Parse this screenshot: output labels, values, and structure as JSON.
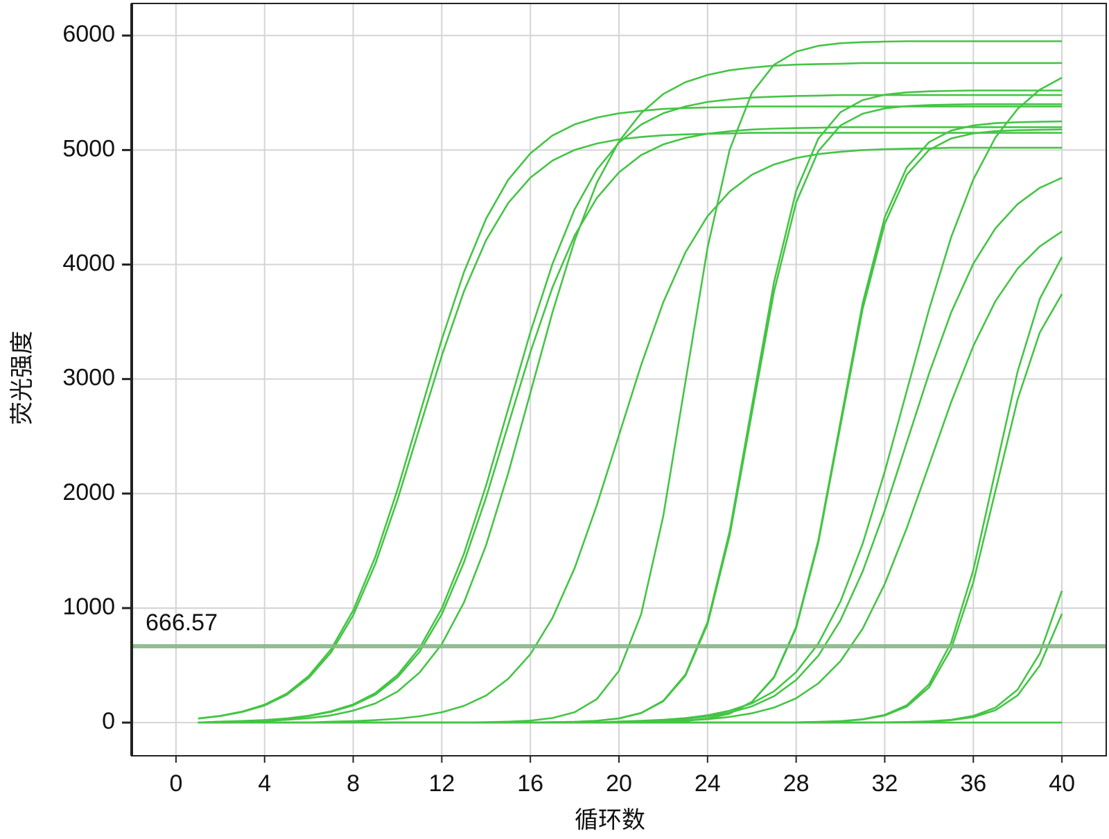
{
  "chart_data": {
    "type": "line",
    "x_label": "循环数",
    "y_label": "荧光强度",
    "xlim": [
      -2,
      42
    ],
    "ylim": [
      -290,
      6280
    ],
    "xticks": [
      0,
      4,
      8,
      12,
      16,
      20,
      24,
      28,
      32,
      36,
      40
    ],
    "yticks": [
      0,
      1000,
      2000,
      3000,
      4000,
      5000,
      6000
    ],
    "grid": true,
    "threshold": 666.57,
    "threshold_color": "#86b886",
    "x": [
      1,
      2,
      3,
      4,
      5,
      6,
      7,
      8,
      9,
      10,
      11,
      12,
      13,
      14,
      15,
      16,
      17,
      18,
      19,
      20,
      21,
      22,
      23,
      24,
      25,
      26,
      27,
      28,
      29,
      30,
      31,
      32,
      33,
      34,
      35,
      36,
      37,
      38,
      39,
      40
    ],
    "series": [
      {
        "color": "#45c445",
        "values": [
          36,
          59,
          97,
          156,
          253,
          409,
          640,
          979,
          1447,
          2034,
          2690,
          3346,
          3933,
          4401,
          4740,
          4971,
          5127,
          5224,
          5283,
          5321,
          5342,
          5359,
          5367,
          5372,
          5375,
          5380,
          5380,
          5380,
          5380,
          5380,
          5380,
          5380,
          5380,
          5380,
          5380,
          5380,
          5380,
          5380,
          5380,
          5380
        ]
      },
      {
        "color": "#45c445",
        "values": [
          35,
          57,
          93,
          149,
          242,
          391,
          613,
          937,
          1385,
          1947,
          2575,
          3203,
          3765,
          4213,
          4537,
          4759,
          4908,
          5001,
          5057,
          5093,
          5114,
          5129,
          5137,
          5142,
          5145,
          5150,
          5150,
          5150,
          5150,
          5150,
          5150,
          5150,
          5150,
          5150,
          5150,
          5150,
          5150,
          5150,
          5150,
          5150
        ]
      },
      {
        "color": "#45c445",
        "values": [
          0,
          8,
          14,
          22,
          37,
          60,
          99,
          159,
          258,
          416,
          652,
          997,
          1474,
          2071,
          2740,
          3409,
          4006,
          4483,
          4828,
          5064,
          5222,
          5321,
          5381,
          5420,
          5442,
          5458,
          5466,
          5472,
          5475,
          5480,
          5480,
          5480,
          5480,
          5480,
          5480,
          5480,
          5480,
          5480,
          5480,
          5480
        ]
      },
      {
        "color": "#45c445",
        "values": [
          0,
          8,
          13,
          21,
          35,
          57,
          94,
          151,
          244,
          395,
          619,
          946,
          1399,
          1966,
          2600,
          3234,
          3801,
          4254,
          4581,
          4805,
          4956,
          5049,
          5106,
          5143,
          5164,
          5179,
          5187,
          5192,
          5195,
          5200,
          5200,
          5200,
          5200,
          5200,
          5200,
          5200,
          5200,
          5200,
          5200,
          5200
        ]
      },
      {
        "color": "#45c445",
        "values": [
          0,
          0,
          9,
          14,
          24,
          39,
          63,
          104,
          167,
          271,
          438,
          685,
          1048,
          1549,
          2177,
          2880,
          3583,
          4211,
          4712,
          5075,
          5322,
          5489,
          5593,
          5656,
          5697,
          5720,
          5737,
          5746,
          5751,
          5754,
          5760,
          5760,
          5760,
          5760,
          5760,
          5760,
          5760,
          5760,
          5760,
          5760
        ]
      },
      {
        "color": "#45c445",
        "values": [
          0,
          0,
          0,
          0,
          0,
          0,
          8,
          13,
          21,
          34,
          55,
          90,
          146,
          236,
          382,
          597,
          914,
          1350,
          1898,
          2510,
          3122,
          3670,
          4106,
          4423,
          4638,
          4784,
          4874,
          4930,
          4965,
          4985,
          5000,
          5007,
          5012,
          5015,
          5020,
          5020,
          5020,
          5020,
          5020,
          5020
        ]
      },
      {
        "color": "#45c445",
        "values": [
          0,
          0,
          0,
          0,
          0,
          0,
          0,
          0,
          0,
          0,
          0,
          0,
          1,
          3,
          8,
          17,
          40,
          91,
          205,
          452,
          946,
          1803,
          2975,
          4147,
          5004,
          5498,
          5745,
          5859,
          5910,
          5933,
          5942,
          5947,
          5950,
          5950,
          5950,
          5950,
          5950,
          5950,
          5950,
          5950
        ]
      },
      {
        "color": "#45c445",
        "values": [
          0,
          0,
          0,
          0,
          0,
          0,
          0,
          0,
          0,
          0,
          0,
          0,
          0,
          0,
          0,
          1,
          3,
          7,
          16,
          36,
          83,
          186,
          410,
          859,
          1636,
          2700,
          3764,
          4541,
          4990,
          5214,
          5317,
          5364,
          5384,
          5393,
          5397,
          5400,
          5400,
          5400,
          5400,
          5400
        ]
      },
      {
        "color": "#45c445",
        "values": [
          0,
          0,
          0,
          0,
          0,
          0,
          0,
          0,
          0,
          0,
          0,
          0,
          0,
          0,
          0,
          1,
          3,
          7,
          16,
          37,
          84,
          190,
          419,
          878,
          1673,
          2760,
          3847,
          4642,
          5100,
          5330,
          5436,
          5483,
          5504,
          5513,
          5517,
          5520,
          5520,
          5520,
          5520,
          5520
        ]
      },
      {
        "color": "#45c445",
        "values": [
          0,
          0,
          0,
          0,
          0,
          0,
          0,
          0,
          0,
          0,
          0,
          0,
          0,
          0,
          0,
          0,
          0,
          0,
          0,
          1,
          3,
          7,
          15,
          35,
          80,
          181,
          398,
          835,
          1591,
          2625,
          3659,
          4415,
          4851,
          5069,
          5170,
          5215,
          5235,
          5243,
          5247,
          5250
        ]
      },
      {
        "color": "#45c445",
        "values": [
          0,
          0,
          0,
          0,
          0,
          0,
          0,
          0,
          0,
          0,
          0,
          0,
          0,
          0,
          0,
          0,
          0,
          0,
          0,
          1,
          3,
          7,
          15,
          35,
          79,
          179,
          393,
          824,
          1570,
          2590,
          3610,
          4356,
          4786,
          5001,
          5101,
          5145,
          5165,
          5173,
          5177,
          5180
        ]
      },
      {
        "color": "#45c445",
        "values": [
          0,
          0,
          0,
          0,
          0,
          0,
          0,
          0,
          0,
          0,
          0,
          0,
          0,
          0,
          0,
          0,
          0,
          0,
          0,
          9,
          15,
          24,
          39,
          64,
          104,
          168,
          273,
          441,
          690,
          1056,
          1560,
          2192,
          2900,
          3608,
          4240,
          4744,
          5110,
          5359,
          5527,
          5632
        ]
      },
      {
        "color": "#45c445",
        "values": [
          0,
          0,
          0,
          0,
          0,
          0,
          0,
          0,
          0,
          0,
          0,
          0,
          0,
          0,
          0,
          0,
          0,
          0,
          0,
          7,
          12,
          20,
          33,
          54,
          88,
          142,
          230,
          372,
          583,
          892,
          1318,
          1852,
          2450,
          3048,
          3582,
          4008,
          4317,
          4528,
          4670,
          4758
        ]
      },
      {
        "color": "#45c445",
        "values": [
          0,
          0,
          0,
          0,
          0,
          0,
          0,
          0,
          0,
          0,
          0,
          0,
          0,
          0,
          0,
          0,
          0,
          0,
          0,
          0,
          7,
          11,
          18,
          30,
          50,
          81,
          131,
          212,
          342,
          536,
          819,
          1211,
          1701,
          2250,
          2799,
          3290,
          3681,
          3965,
          4158,
          4289
        ]
      },
      {
        "color": "#45c445",
        "values": [
          0,
          0,
          0,
          0,
          0,
          0,
          0,
          0,
          0,
          0,
          0,
          0,
          0,
          0,
          0,
          0,
          0,
          0,
          0,
          0,
          0,
          0,
          0,
          0,
          0,
          0,
          1,
          2,
          6,
          13,
          29,
          67,
          152,
          334,
          700,
          1333,
          2200,
          3067,
          3700,
          4066
        ]
      },
      {
        "color": "#45c445",
        "values": [
          0,
          0,
          0,
          0,
          0,
          0,
          0,
          0,
          0,
          0,
          0,
          0,
          0,
          0,
          0,
          0,
          0,
          0,
          0,
          0,
          0,
          0,
          0,
          0,
          0,
          0,
          1,
          2,
          5,
          12,
          27,
          62,
          140,
          307,
          644,
          1227,
          2025,
          2823,
          3406,
          3742
        ]
      },
      {
        "color": "#45c445",
        "values": [
          0,
          0,
          0,
          0,
          0,
          0,
          0,
          0,
          0,
          0,
          0,
          0,
          0,
          0,
          0,
          0,
          0,
          0,
          0,
          0,
          0,
          0,
          0,
          0,
          0,
          0,
          0,
          0,
          0,
          0,
          1,
          2,
          5,
          11,
          25,
          58,
          131,
          288,
          604,
          1151
        ]
      },
      {
        "color": "#45c445",
        "values": [
          0,
          0,
          0,
          0,
          0,
          0,
          0,
          0,
          0,
          0,
          0,
          0,
          0,
          0,
          0,
          0,
          0,
          0,
          0,
          0,
          0,
          0,
          0,
          0,
          0,
          0,
          0,
          0,
          0,
          0,
          1,
          2,
          4,
          9,
          21,
          48,
          108,
          238,
          498,
          950
        ]
      },
      {
        "color": "#45c445",
        "values": [
          0,
          0,
          0,
          0,
          0,
          0,
          0,
          0,
          0,
          0,
          0,
          0,
          0,
          0,
          0,
          0,
          0,
          0,
          0,
          0,
          0,
          0,
          0,
          0,
          0,
          0,
          0,
          0,
          0,
          0,
          0,
          0,
          0,
          0,
          0,
          0,
          0,
          0,
          0,
          0
        ]
      }
    ]
  }
}
